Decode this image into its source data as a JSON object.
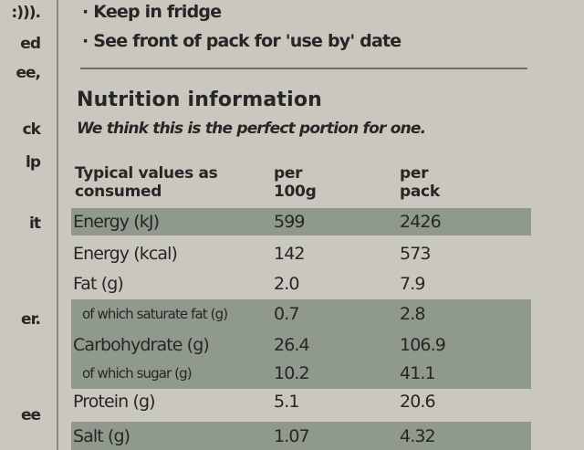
{
  "left_fragments": [
    ":))).",
    "ed",
    "ee,",
    "ck",
    "lp",
    "it",
    "er.",
    "ee"
  ],
  "storage": [
    "· Keep in fridge",
    "· See front of pack for 'use by' date"
  ],
  "nutrition": {
    "title": "Nutrition information",
    "subtitle": "We think this is the perfect portion for one.",
    "header": [
      "Typical values as consumed",
      "per 100g",
      "per pack"
    ],
    "rows": [
      [
        "Energy (kJ)",
        "599",
        "2426"
      ],
      [
        "Energy (kcal)",
        "142",
        "573"
      ],
      [
        "Fat (g)",
        "2.0",
        "7.9"
      ],
      [
        "of which saturate fat (g)",
        "0.7",
        "2.8"
      ],
      [
        "Carbohydrate (g)",
        "26.4",
        "106.9"
      ],
      [
        "of which sugar (g)",
        "10.2",
        "41.1"
      ],
      [
        "Protein (g)",
        "5.1",
        "20.6"
      ],
      [
        "Salt (g)",
        "1.07",
        "4.32"
      ]
    ]
  }
}
